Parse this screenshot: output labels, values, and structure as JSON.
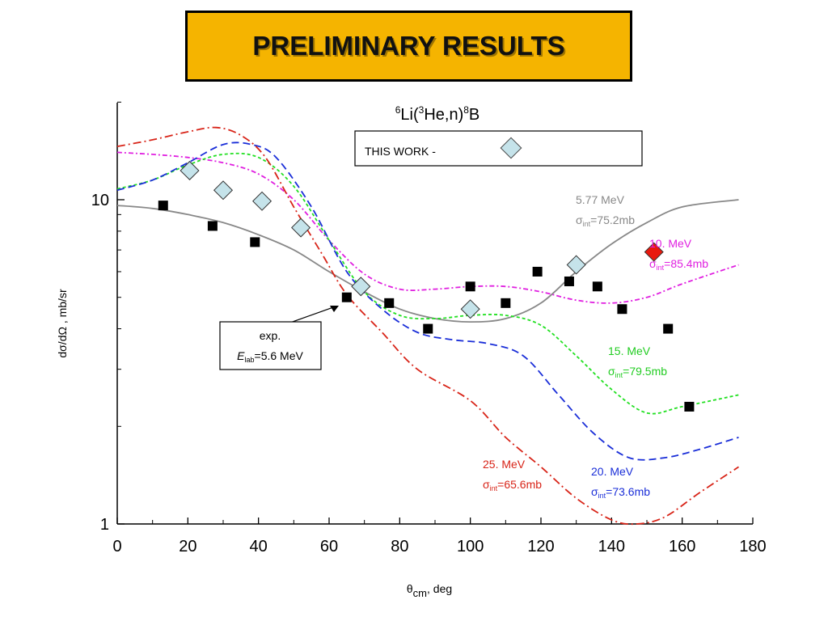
{
  "banner": {
    "title": "PRELIMINARY RESULTS"
  },
  "colors": {
    "banner_bg": "#f5b400",
    "accent": "#e8e8e8"
  },
  "chart_data": {
    "type": "scatter",
    "title": {
      "pre": "6",
      "mid": "Li(",
      "sup": "3",
      "mid2": "He,n)",
      "pre2": "8",
      "end": "B"
    },
    "legend": {
      "label": "THIS WORK - ",
      "position": "top"
    },
    "xlabel": {
      "sym": "θ",
      "sub": "cm",
      "rest": ", deg"
    },
    "ylabel": "dσ/dΩ ,  mb/sr",
    "xlim": [
      0,
      180
    ],
    "ylim": [
      1,
      20
    ],
    "yscale": "log",
    "x_ticks": [
      "0",
      "20",
      "40",
      "60",
      "80",
      "100",
      "120",
      "140",
      "160",
      "180"
    ],
    "y_ticks": [
      "1",
      "10"
    ],
    "exp_annotation": {
      "line1": "exp.",
      "E": "E",
      "sub": "lab",
      "rest": "=5.6 MeV"
    },
    "series": [
      {
        "kind": "points",
        "marker": "square",
        "color": "#000000",
        "points": [
          [
            13,
            9.6
          ],
          [
            27,
            8.3
          ],
          [
            39,
            7.4
          ],
          [
            65,
            5.0
          ],
          [
            77,
            4.8
          ],
          [
            88,
            4.0
          ],
          [
            100,
            5.4
          ],
          [
            110,
            4.8
          ],
          [
            119,
            6.0
          ],
          [
            128,
            5.6
          ],
          [
            136,
            5.4
          ],
          [
            143,
            4.6
          ],
          [
            156,
            4.0
          ],
          [
            162,
            2.3
          ]
        ]
      },
      {
        "kind": "points",
        "marker": "diamond",
        "color": "#c5e3ea",
        "points": [
          [
            20.5,
            12.3
          ],
          [
            30,
            10.7
          ],
          [
            41,
            9.9
          ],
          [
            52,
            8.2
          ],
          [
            69,
            5.4
          ],
          [
            100,
            4.6
          ],
          [
            130,
            6.3
          ]
        ]
      },
      {
        "kind": "points",
        "marker": "diamond",
        "color": "#e8190e",
        "points": [
          [
            152,
            6.9
          ]
        ]
      },
      {
        "kind": "curve",
        "label": "5.77 MeV",
        "sigma": "=75.2mb",
        "color": "#888888",
        "dash": "",
        "points": [
          [
            0,
            9.6
          ],
          [
            10,
            9.4
          ],
          [
            20,
            9.0
          ],
          [
            30,
            8.5
          ],
          [
            40,
            7.8
          ],
          [
            50,
            7.0
          ],
          [
            60,
            6.0
          ],
          [
            70,
            5.2
          ],
          [
            80,
            4.6
          ],
          [
            90,
            4.3
          ],
          [
            100,
            4.2
          ],
          [
            110,
            4.3
          ],
          [
            120,
            4.8
          ],
          [
            130,
            6.0
          ],
          [
            140,
            7.3
          ],
          [
            150,
            8.5
          ],
          [
            160,
            9.5
          ],
          [
            176,
            10.0
          ]
        ]
      },
      {
        "kind": "curve",
        "label": "10. MeV",
        "sigma": "=85.4mb",
        "color": "#e020e0",
        "dash": "6,3,2,3",
        "points": [
          [
            0,
            14.0
          ],
          [
            10,
            13.8
          ],
          [
            20,
            13.5
          ],
          [
            30,
            13.0
          ],
          [
            40,
            12.0
          ],
          [
            50,
            10.0
          ],
          [
            60,
            7.5
          ],
          [
            70,
            5.9
          ],
          [
            80,
            5.3
          ],
          [
            90,
            5.3
          ],
          [
            100,
            5.4
          ],
          [
            110,
            5.4
          ],
          [
            120,
            5.2
          ],
          [
            130,
            4.9
          ],
          [
            140,
            4.8
          ],
          [
            150,
            5.0
          ],
          [
            160,
            5.5
          ],
          [
            176,
            6.3
          ]
        ]
      },
      {
        "kind": "curve",
        "label": "15. MeV",
        "sigma": "=79.5mb",
        "color": "#22e022",
        "dash": "4,3",
        "points": [
          [
            0,
            10.8
          ],
          [
            10,
            11.5
          ],
          [
            20,
            12.8
          ],
          [
            30,
            13.8
          ],
          [
            40,
            13.5
          ],
          [
            50,
            11.0
          ],
          [
            60,
            7.5
          ],
          [
            70,
            5.2
          ],
          [
            80,
            4.4
          ],
          [
            90,
            4.3
          ],
          [
            100,
            4.4
          ],
          [
            110,
            4.4
          ],
          [
            120,
            4.1
          ],
          [
            130,
            3.3
          ],
          [
            140,
            2.6
          ],
          [
            150,
            2.2
          ],
          [
            160,
            2.3
          ],
          [
            176,
            2.5
          ]
        ]
      },
      {
        "kind": "curve",
        "label": "20. MeV",
        "sigma": "=73.6mb",
        "color": "#1a2ed8",
        "dash": "9,5",
        "points": [
          [
            0,
            10.7
          ],
          [
            10,
            11.5
          ],
          [
            20,
            13.0
          ],
          [
            30,
            14.8
          ],
          [
            38,
            14.8
          ],
          [
            45,
            13.5
          ],
          [
            55,
            9.5
          ],
          [
            65,
            6.0
          ],
          [
            75,
            4.6
          ],
          [
            85,
            3.9
          ],
          [
            95,
            3.7
          ],
          [
            105,
            3.6
          ],
          [
            115,
            3.3
          ],
          [
            125,
            2.5
          ],
          [
            135,
            1.9
          ],
          [
            145,
            1.6
          ],
          [
            155,
            1.6
          ],
          [
            165,
            1.7
          ],
          [
            176,
            1.85
          ]
        ]
      },
      {
        "kind": "curve",
        "label": "25. MeV",
        "sigma": "=65.6mb",
        "color": "#d82418",
        "dash": "10,4,2,4",
        "points": [
          [
            0,
            14.6
          ],
          [
            10,
            15.3
          ],
          [
            20,
            16.2
          ],
          [
            28,
            16.7
          ],
          [
            35,
            15.8
          ],
          [
            42,
            13.5
          ],
          [
            50,
            9.5
          ],
          [
            58,
            6.8
          ],
          [
            65,
            5.1
          ],
          [
            75,
            3.9
          ],
          [
            85,
            3.0
          ],
          [
            100,
            2.4
          ],
          [
            110,
            1.85
          ],
          [
            120,
            1.5
          ],
          [
            130,
            1.2
          ],
          [
            140,
            1.03
          ],
          [
            147,
            1.0
          ],
          [
            155,
            1.05
          ],
          [
            165,
            1.25
          ],
          [
            176,
            1.5
          ]
        ]
      }
    ]
  }
}
